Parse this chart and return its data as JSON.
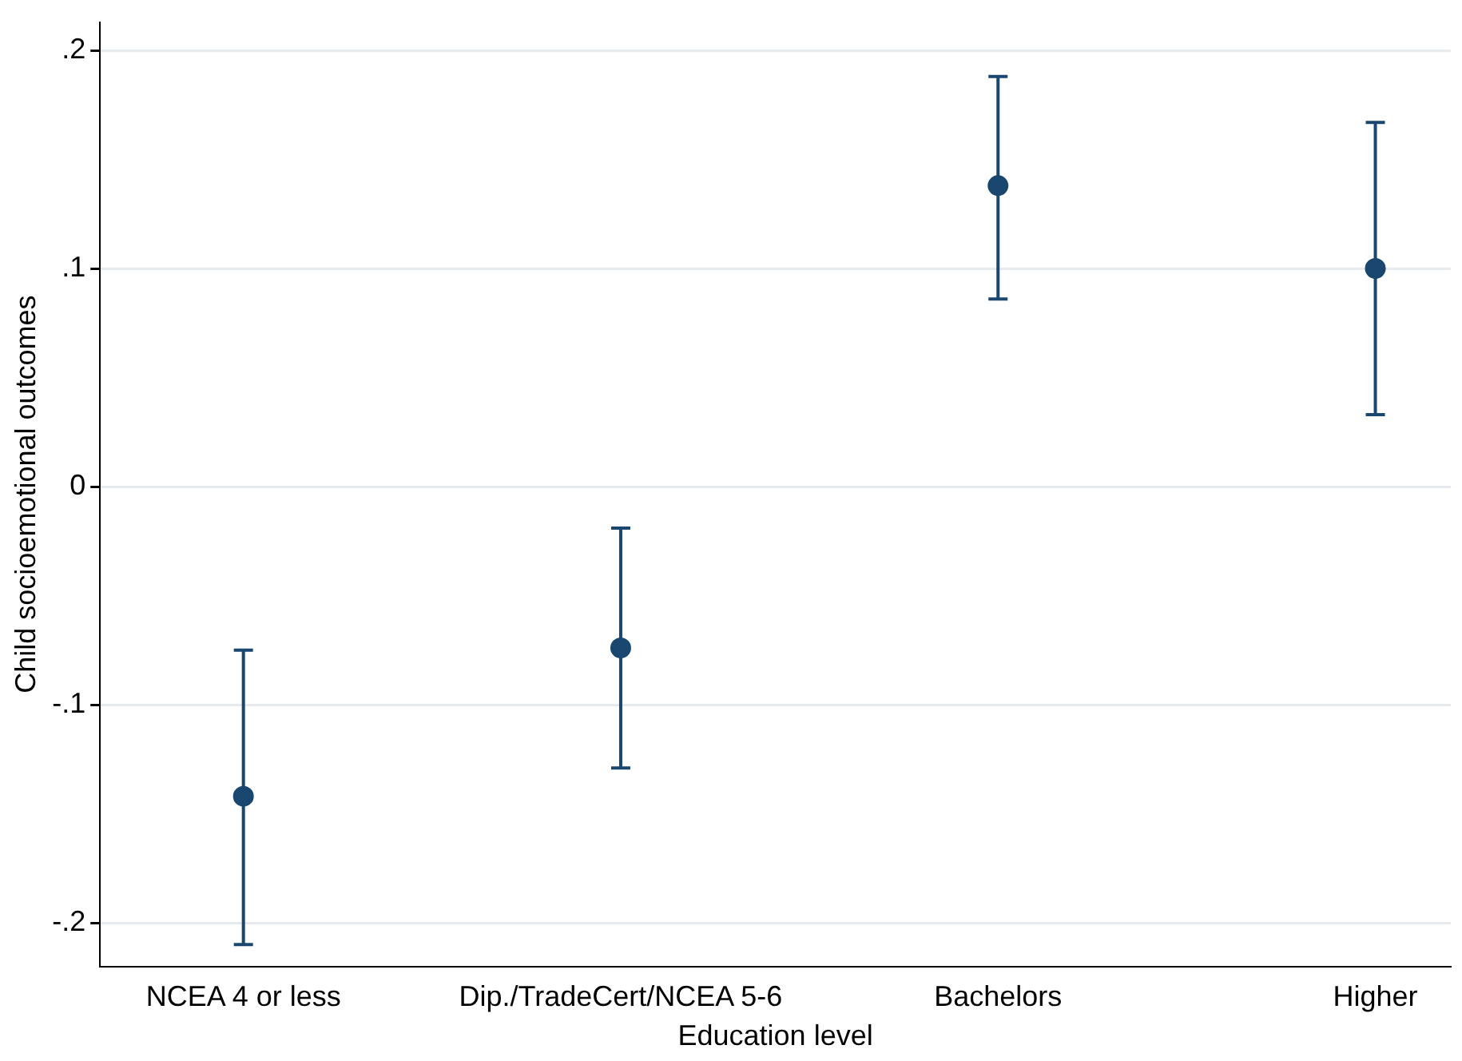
{
  "chart_data": {
    "type": "scatter",
    "xlabel": "Education level",
    "ylabel": "Child socioemotional outcomes",
    "categories": [
      "NCEA 4 or less",
      "Dip./TradeCert/NCEA 5-6",
      "Bachelors",
      "Higher"
    ],
    "series": [
      {
        "color": "#1a476f",
        "values": [
          -0.142,
          -0.074,
          0.138,
          0.1
        ],
        "errors": [
          [
            -0.21,
            -0.075
          ],
          [
            -0.129,
            -0.019
          ],
          [
            0.086,
            0.188
          ],
          [
            0.033,
            0.167
          ]
        ]
      }
    ],
    "ylim": [
      -0.22,
      0.213
    ],
    "yticks": [
      {
        "value": -0.2,
        "label": "-.2"
      },
      {
        "value": -0.1,
        "label": "-.1"
      },
      0,
      {
        "value": 0.1,
        "label": ".1"
      },
      {
        "value": 0.2,
        "label": ".2"
      }
    ],
    "grid": "y",
    "marker": "circle",
    "legend": false
  }
}
